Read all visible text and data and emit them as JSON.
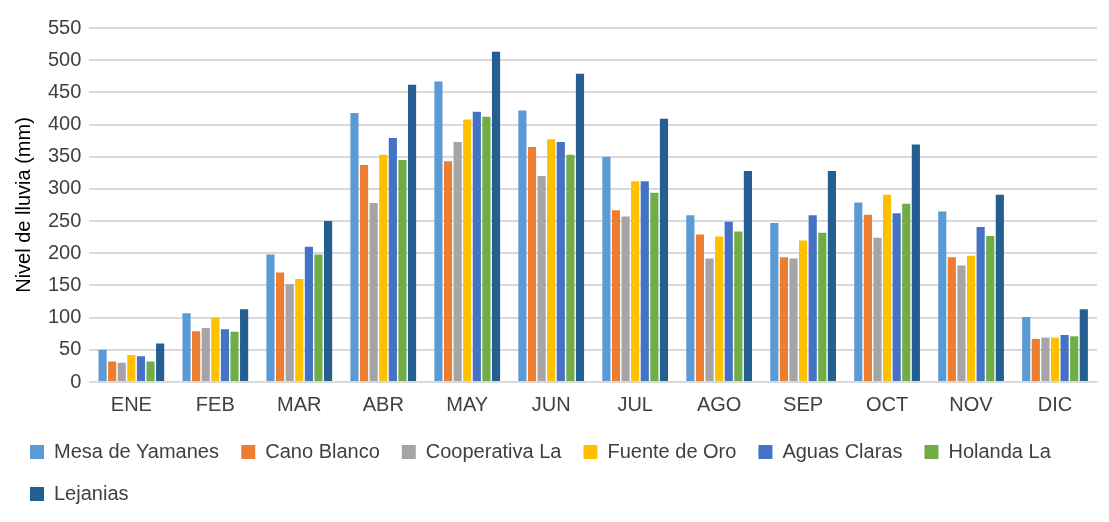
{
  "chart_data": {
    "type": "bar",
    "ylabel": "Nivel de lluvia (mm)",
    "categories": [
      "ENE",
      "FEB",
      "MAR",
      "ABR",
      "MAY",
      "JUN",
      "JUL",
      "AGO",
      "SEP",
      "OCT",
      "NOV",
      "DIC"
    ],
    "series": [
      {
        "name": "Mesa de Yamanes",
        "color": "#5b9bd5",
        "values": [
          50,
          107,
          198,
          418,
          467,
          422,
          350,
          259,
          247,
          279,
          265,
          101
        ]
      },
      {
        "name": "Cano Blanco",
        "color": "#ed7d31",
        "values": [
          32,
          79,
          170,
          337,
          343,
          365,
          267,
          229,
          194,
          260,
          194,
          67
        ]
      },
      {
        "name": "Cooperativa La",
        "color": "#a5a5a5",
        "values": [
          30,
          84,
          152,
          278,
          373,
          320,
          257,
          192,
          192,
          224,
          181,
          69
        ]
      },
      {
        "name": "Fuente de Oro",
        "color": "#ffc000",
        "values": [
          42,
          100,
          160,
          353,
          408,
          377,
          312,
          226,
          220,
          291,
          196,
          69
        ]
      },
      {
        "name": "Aguas Claras",
        "color": "#4472c4",
        "values": [
          40,
          82,
          210,
          379,
          420,
          373,
          312,
          249,
          259,
          262,
          241,
          73
        ]
      },
      {
        "name": "Holanda La",
        "color": "#70ad47",
        "values": [
          32,
          78,
          198,
          345,
          412,
          353,
          294,
          234,
          232,
          277,
          227,
          71
        ]
      },
      {
        "name": "Lejanias",
        "color": "#255e91",
        "values": [
          60,
          113,
          250,
          462,
          513,
          479,
          409,
          328,
          328,
          369,
          291,
          113
        ]
      }
    ],
    "ylim": [
      0,
      550
    ],
    "yticks": [
      0,
      50,
      100,
      150,
      200,
      250,
      300,
      350,
      400,
      450,
      500,
      550
    ],
    "grid": "y",
    "legend": "bottom"
  }
}
